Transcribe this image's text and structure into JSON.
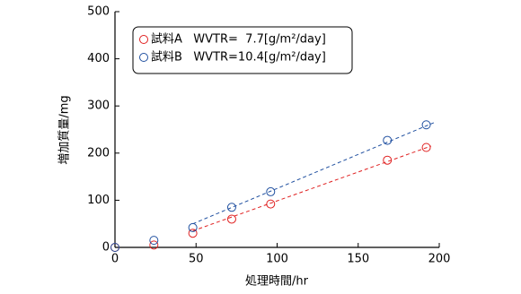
{
  "chart_data": {
    "type": "scatter",
    "xlabel": "処理時間/hr",
    "ylabel": "増加質量/mg",
    "xlim": [
      0,
      200
    ],
    "xticks": [
      0,
      50,
      100,
      150,
      200
    ],
    "ylim": [
      0,
      500
    ],
    "yticks": [
      0,
      100,
      200,
      300,
      400,
      500
    ],
    "legend": "upper left",
    "x": [
      0,
      24,
      48,
      72,
      96,
      168,
      192
    ],
    "series": [
      {
        "name": "試料A   WVTR=  7.7[g/m²/day]",
        "color": "#e02020",
        "values": [
          0,
          5,
          30,
          60,
          92,
          185,
          212
        ]
      },
      {
        "name": "試料B   WVTR=10.4[g/m²/day]",
        "color": "#2050a0",
        "values": [
          0,
          15,
          42,
          85,
          118,
          227,
          260
        ]
      }
    ],
    "fits": [
      {
        "color": "#e02020",
        "x": [
          48,
          195
        ],
        "values": [
          35,
          215
        ]
      },
      {
        "color": "#2050a0",
        "x": [
          48,
          197
        ],
        "values": [
          50,
          265
        ]
      }
    ]
  }
}
